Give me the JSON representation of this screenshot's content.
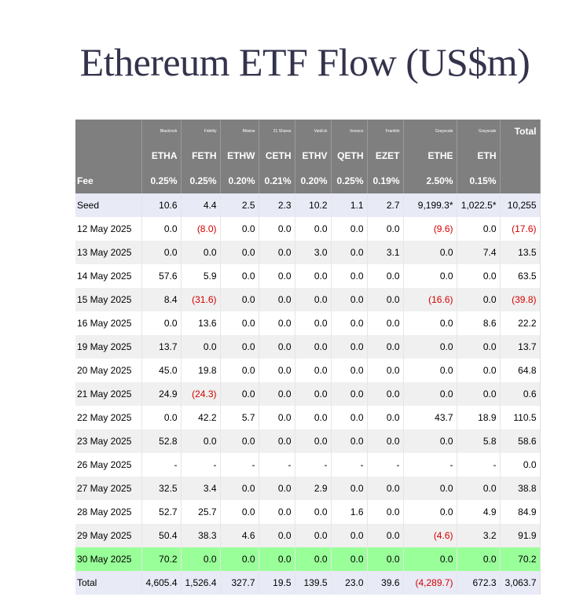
{
  "title": "Ethereum ETF Flow (US$m)",
  "issuers": [
    "Blackrock",
    "Fidelity",
    "Bitwise",
    "21 Shares",
    "VanEck",
    "Invesco",
    "Franklin",
    "Grayscale",
    "Grayscale"
  ],
  "tickers": [
    "ETHA",
    "FETH",
    "ETHW",
    "CETH",
    "ETHV",
    "QETH",
    "EZET",
    "ETHE",
    "ETH"
  ],
  "total_header": "Total",
  "fee_label": "Fee",
  "fees": [
    "0.25%",
    "0.25%",
    "0.20%",
    "0.21%",
    "0.20%",
    "0.25%",
    "0.19%",
    "2.50%",
    "0.15%"
  ],
  "rows": [
    {
      "label": "Seed",
      "values": [
        "10.6",
        "4.4",
        "2.5",
        "2.3",
        "10.2",
        "1.1",
        "2.7",
        "9,199.3*",
        "1,022.5*",
        "10,255"
      ]
    },
    {
      "label": "12 May 2025",
      "values": [
        "0.0",
        "(8.0)",
        "0.0",
        "0.0",
        "0.0",
        "0.0",
        "0.0",
        "(9.6)",
        "0.0",
        "(17.6)"
      ]
    },
    {
      "label": "13 May 2025",
      "values": [
        "0.0",
        "0.0",
        "0.0",
        "0.0",
        "3.0",
        "0.0",
        "3.1",
        "0.0",
        "7.4",
        "13.5"
      ]
    },
    {
      "label": "14 May 2025",
      "values": [
        "57.6",
        "5.9",
        "0.0",
        "0.0",
        "0.0",
        "0.0",
        "0.0",
        "0.0",
        "0.0",
        "63.5"
      ]
    },
    {
      "label": "15 May 2025",
      "values": [
        "8.4",
        "(31.6)",
        "0.0",
        "0.0",
        "0.0",
        "0.0",
        "0.0",
        "(16.6)",
        "0.0",
        "(39.8)"
      ]
    },
    {
      "label": "16 May 2025",
      "values": [
        "0.0",
        "13.6",
        "0.0",
        "0.0",
        "0.0",
        "0.0",
        "0.0",
        "0.0",
        "8.6",
        "22.2"
      ]
    },
    {
      "label": "19 May 2025",
      "values": [
        "13.7",
        "0.0",
        "0.0",
        "0.0",
        "0.0",
        "0.0",
        "0.0",
        "0.0",
        "0.0",
        "13.7"
      ]
    },
    {
      "label": "20 May 2025",
      "values": [
        "45.0",
        "19.8",
        "0.0",
        "0.0",
        "0.0",
        "0.0",
        "0.0",
        "0.0",
        "0.0",
        "64.8"
      ]
    },
    {
      "label": "21 May 2025",
      "values": [
        "24.9",
        "(24.3)",
        "0.0",
        "0.0",
        "0.0",
        "0.0",
        "0.0",
        "0.0",
        "0.0",
        "0.6"
      ]
    },
    {
      "label": "22 May 2025",
      "values": [
        "0.0",
        "42.2",
        "5.7",
        "0.0",
        "0.0",
        "0.0",
        "0.0",
        "43.7",
        "18.9",
        "110.5"
      ]
    },
    {
      "label": "23 May 2025",
      "values": [
        "52.8",
        "0.0",
        "0.0",
        "0.0",
        "0.0",
        "0.0",
        "0.0",
        "0.0",
        "5.8",
        "58.6"
      ]
    },
    {
      "label": "26 May 2025",
      "values": [
        "-",
        "-",
        "-",
        "-",
        "-",
        "-",
        "-",
        "-",
        "-",
        "0.0"
      ]
    },
    {
      "label": "27 May 2025",
      "values": [
        "32.5",
        "3.4",
        "0.0",
        "0.0",
        "2.9",
        "0.0",
        "0.0",
        "0.0",
        "0.0",
        "38.8"
      ]
    },
    {
      "label": "28 May 2025",
      "values": [
        "52.7",
        "25.7",
        "0.0",
        "0.0",
        "0.0",
        "1.6",
        "0.0",
        "0.0",
        "4.9",
        "84.9"
      ]
    },
    {
      "label": "29 May 2025",
      "values": [
        "50.4",
        "38.3",
        "4.6",
        "0.0",
        "0.0",
        "0.0",
        "0.0",
        "(4.6)",
        "3.2",
        "91.9"
      ]
    },
    {
      "label": "30 May 2025",
      "values": [
        "70.2",
        "0.0",
        "0.0",
        "0.0",
        "0.0",
        "0.0",
        "0.0",
        "0.0",
        "0.0",
        "70.2"
      ]
    },
    {
      "label": "Total",
      "values": [
        "4,605.4",
        "1,526.4",
        "327.7",
        "19.5",
        "139.5",
        "23.0",
        "39.6",
        "(4,289.7)",
        "672.3",
        "3,063.7"
      ]
    }
  ],
  "colors": {
    "header_bg": "#7f7f7f",
    "seed_total_bg": "#e8eaf6",
    "alt_row_bg": "#f0f0f0",
    "latest_row_bg": "#99ff99",
    "negative_text": "#d40000"
  }
}
